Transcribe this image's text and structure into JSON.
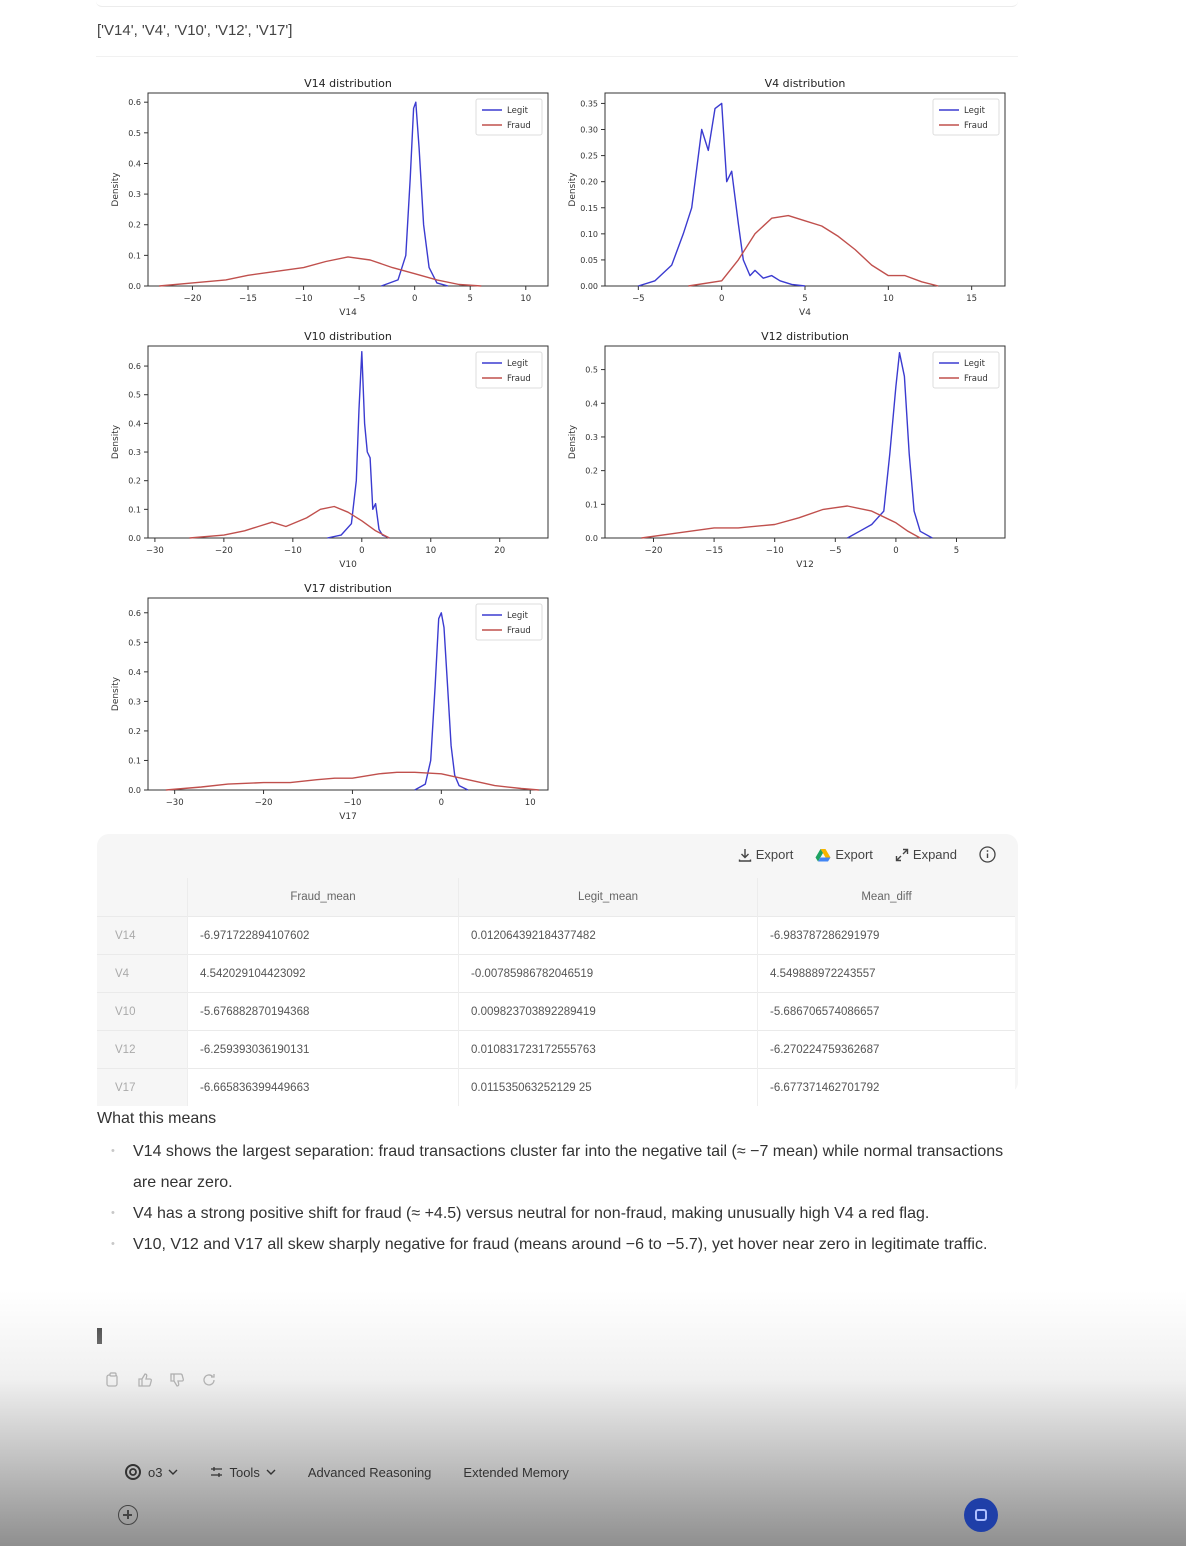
{
  "features_output": "['V14', 'V4', 'V10', 'V12', 'V17']",
  "chart_data": [
    {
      "type": "line",
      "title": "V14 distribution",
      "xlabel": "V14",
      "ylabel": "Density",
      "xlim": [
        -24,
        12
      ],
      "ylim": [
        0,
        0.63
      ],
      "xticks": [
        -20,
        -15,
        -10,
        -5,
        0,
        5,
        10
      ],
      "yticks": [
        0.0,
        0.1,
        0.2,
        0.3,
        0.4,
        0.5,
        0.6
      ],
      "legend_position": "top-right",
      "series": [
        {
          "name": "Legit",
          "color": "#3b3bd0",
          "x": [
            -3,
            -1.5,
            -0.8,
            -0.4,
            -0.1,
            0.1,
            0.4,
            0.8,
            1.3,
            2,
            3
          ],
          "y": [
            0,
            0.02,
            0.1,
            0.35,
            0.58,
            0.6,
            0.45,
            0.2,
            0.06,
            0.01,
            0
          ]
        },
        {
          "name": "Fraud",
          "color": "#c0504d",
          "x": [
            -23,
            -20,
            -17,
            -15,
            -13,
            -10,
            -8,
            -6,
            -4,
            -2,
            0,
            2,
            4,
            6
          ],
          "y": [
            0,
            0.01,
            0.02,
            0.035,
            0.045,
            0.06,
            0.08,
            0.095,
            0.085,
            0.06,
            0.04,
            0.02,
            0.005,
            0
          ]
        }
      ]
    },
    {
      "type": "line",
      "title": "V4 distribution",
      "xlabel": "V4",
      "ylabel": "Density",
      "xlim": [
        -7,
        17
      ],
      "ylim": [
        0,
        0.37
      ],
      "xticks": [
        -5,
        0,
        5,
        10,
        15
      ],
      "yticks": [
        0.0,
        0.05,
        0.1,
        0.15,
        0.2,
        0.25,
        0.3,
        0.35
      ],
      "legend_position": "top-right",
      "series": [
        {
          "name": "Legit",
          "color": "#3b3bd0",
          "x": [
            -5,
            -4,
            -3,
            -2.3,
            -1.8,
            -1.2,
            -0.8,
            -0.4,
            0,
            0.3,
            0.6,
            1.0,
            1.3,
            1.7,
            2.0,
            2.5,
            3.0,
            3.5,
            4.2,
            5
          ],
          "y": [
            0,
            0.01,
            0.04,
            0.1,
            0.15,
            0.3,
            0.26,
            0.34,
            0.35,
            0.2,
            0.22,
            0.12,
            0.05,
            0.02,
            0.03,
            0.015,
            0.02,
            0.01,
            0.003,
            0
          ]
        },
        {
          "name": "Fraud",
          "color": "#c0504d",
          "x": [
            -2,
            0,
            1,
            2,
            3,
            4,
            5,
            6,
            7,
            8,
            9,
            10,
            11,
            12,
            13
          ],
          "y": [
            0,
            0.01,
            0.05,
            0.1,
            0.13,
            0.135,
            0.125,
            0.115,
            0.095,
            0.07,
            0.04,
            0.02,
            0.02,
            0.008,
            0
          ]
        }
      ]
    },
    {
      "type": "line",
      "title": "V10 distribution",
      "xlabel": "V10",
      "ylabel": "Density",
      "xlim": [
        -31,
        27
      ],
      "ylim": [
        0,
        0.67
      ],
      "xticks": [
        -30,
        -20,
        -10,
        0,
        10,
        20
      ],
      "yticks": [
        0.0,
        0.1,
        0.2,
        0.3,
        0.4,
        0.5,
        0.6
      ],
      "legend_position": "top-right",
      "series": [
        {
          "name": "Legit",
          "color": "#3b3bd0",
          "x": [
            -5,
            -3,
            -1.5,
            -0.8,
            -0.4,
            0,
            0.4,
            0.8,
            1.2,
            1.6,
            2.0,
            2.5,
            3,
            4
          ],
          "y": [
            0,
            0.01,
            0.05,
            0.2,
            0.45,
            0.65,
            0.4,
            0.3,
            0.28,
            0.1,
            0.12,
            0.03,
            0.01,
            0
          ]
        },
        {
          "name": "Fraud",
          "color": "#c0504d",
          "x": [
            -25,
            -20,
            -17,
            -15,
            -13,
            -11,
            -8,
            -6,
            -4,
            -2,
            0,
            2,
            4
          ],
          "y": [
            0,
            0.01,
            0.025,
            0.04,
            0.055,
            0.04,
            0.07,
            0.1,
            0.11,
            0.09,
            0.06,
            0.025,
            0
          ]
        }
      ]
    },
    {
      "type": "line",
      "title": "V12 distribution",
      "xlabel": "V12",
      "ylabel": "Density",
      "xlim": [
        -24,
        9
      ],
      "ylim": [
        0,
        0.57
      ],
      "xticks": [
        -20,
        -15,
        -10,
        -5,
        0,
        5
      ],
      "yticks": [
        0.0,
        0.1,
        0.2,
        0.3,
        0.4,
        0.5
      ],
      "legend_position": "top-right",
      "series": [
        {
          "name": "Legit",
          "color": "#3b3bd0",
          "x": [
            -4,
            -3,
            -2,
            -1.5,
            -1,
            -0.5,
            0,
            0.3,
            0.7,
            1.1,
            1.5,
            2,
            3
          ],
          "y": [
            0,
            0.02,
            0.04,
            0.06,
            0.08,
            0.25,
            0.45,
            0.55,
            0.48,
            0.25,
            0.08,
            0.02,
            0
          ]
        },
        {
          "name": "Fraud",
          "color": "#c0504d",
          "x": [
            -21,
            -18,
            -15,
            -13,
            -10,
            -8,
            -6,
            -4,
            -2,
            0,
            1,
            2
          ],
          "y": [
            0,
            0.015,
            0.03,
            0.03,
            0.04,
            0.06,
            0.085,
            0.095,
            0.08,
            0.045,
            0.02,
            0
          ]
        }
      ]
    },
    {
      "type": "line",
      "title": "V17 distribution",
      "xlabel": "V17",
      "ylabel": "Density",
      "xlim": [
        -33,
        12
      ],
      "ylim": [
        0,
        0.65
      ],
      "xticks": [
        -30,
        -20,
        -10,
        0,
        10
      ],
      "yticks": [
        0.0,
        0.1,
        0.2,
        0.3,
        0.4,
        0.5,
        0.6
      ],
      "legend_position": "top-right",
      "series": [
        {
          "name": "Legit",
          "color": "#3b3bd0",
          "x": [
            -3,
            -1.8,
            -1.2,
            -0.7,
            -0.3,
            0,
            0.3,
            0.7,
            1.1,
            1.5,
            2,
            3
          ],
          "y": [
            0,
            0.02,
            0.1,
            0.35,
            0.58,
            0.6,
            0.55,
            0.35,
            0.15,
            0.05,
            0.015,
            0
          ]
        },
        {
          "name": "Fraud",
          "color": "#c0504d",
          "x": [
            -31,
            -27,
            -24,
            -20,
            -17,
            -14,
            -12,
            -10,
            -7,
            -5,
            -3,
            0,
            3,
            6,
            9,
            11
          ],
          "y": [
            0,
            0.01,
            0.02,
            0.025,
            0.025,
            0.035,
            0.04,
            0.04,
            0.055,
            0.06,
            0.06,
            0.055,
            0.035,
            0.015,
            0.005,
            0
          ]
        }
      ]
    }
  ],
  "table": {
    "tools": [
      {
        "label": "Export",
        "icon": "download-icon"
      },
      {
        "label": "Export",
        "icon": "google-drive-icon"
      },
      {
        "label": "Expand",
        "icon": "expand-icon"
      }
    ],
    "columns": [
      "Fraud_mean",
      "Legit_mean",
      "Mean_diff"
    ],
    "rows": [
      {
        "label": "V14",
        "values": [
          "-6.971722894107602",
          "0.012064392184377482",
          "-6.983787286291979"
        ]
      },
      {
        "label": "V4",
        "values": [
          "4.542029104423092",
          "-0.00785986782046519",
          "4.549888972243557"
        ]
      },
      {
        "label": "V10",
        "values": [
          "-5.676882870194368",
          "0.009823703892289419",
          "-5.686706574086657"
        ]
      },
      {
        "label": "V12",
        "values": [
          "-6.259393036190131",
          "0.010831723172555763",
          "-6.270224759362687"
        ]
      },
      {
        "label": "V17",
        "values": [
          "-6.665836399449663",
          "0.011535063252129 25",
          "-6.677371462701792"
        ]
      }
    ]
  },
  "answer": {
    "heading": "What this means",
    "bullets": [
      "V14 shows the largest separation: fraud transactions cluster far into the negative tail (≈ −7 mean) while normal transactions are near zero.",
      "V4 has a strong positive shift for fraud (≈ +4.5) versus neutral for non-fraud, making unusually high V4 a red flag.",
      "V10, V12 and V17 all skew sharply negative for fraud (means around −6 to −5.7), yet hover near zero in legitimate traffic."
    ]
  },
  "message_actions": [
    "copy-icon",
    "thumbs-up-icon",
    "thumbs-down-icon",
    "regenerate-icon"
  ],
  "composer": {
    "model": "o3",
    "tools_label": "Tools",
    "advanced_reasoning": "Advanced Reasoning",
    "extended_memory": "Extended Memory"
  }
}
